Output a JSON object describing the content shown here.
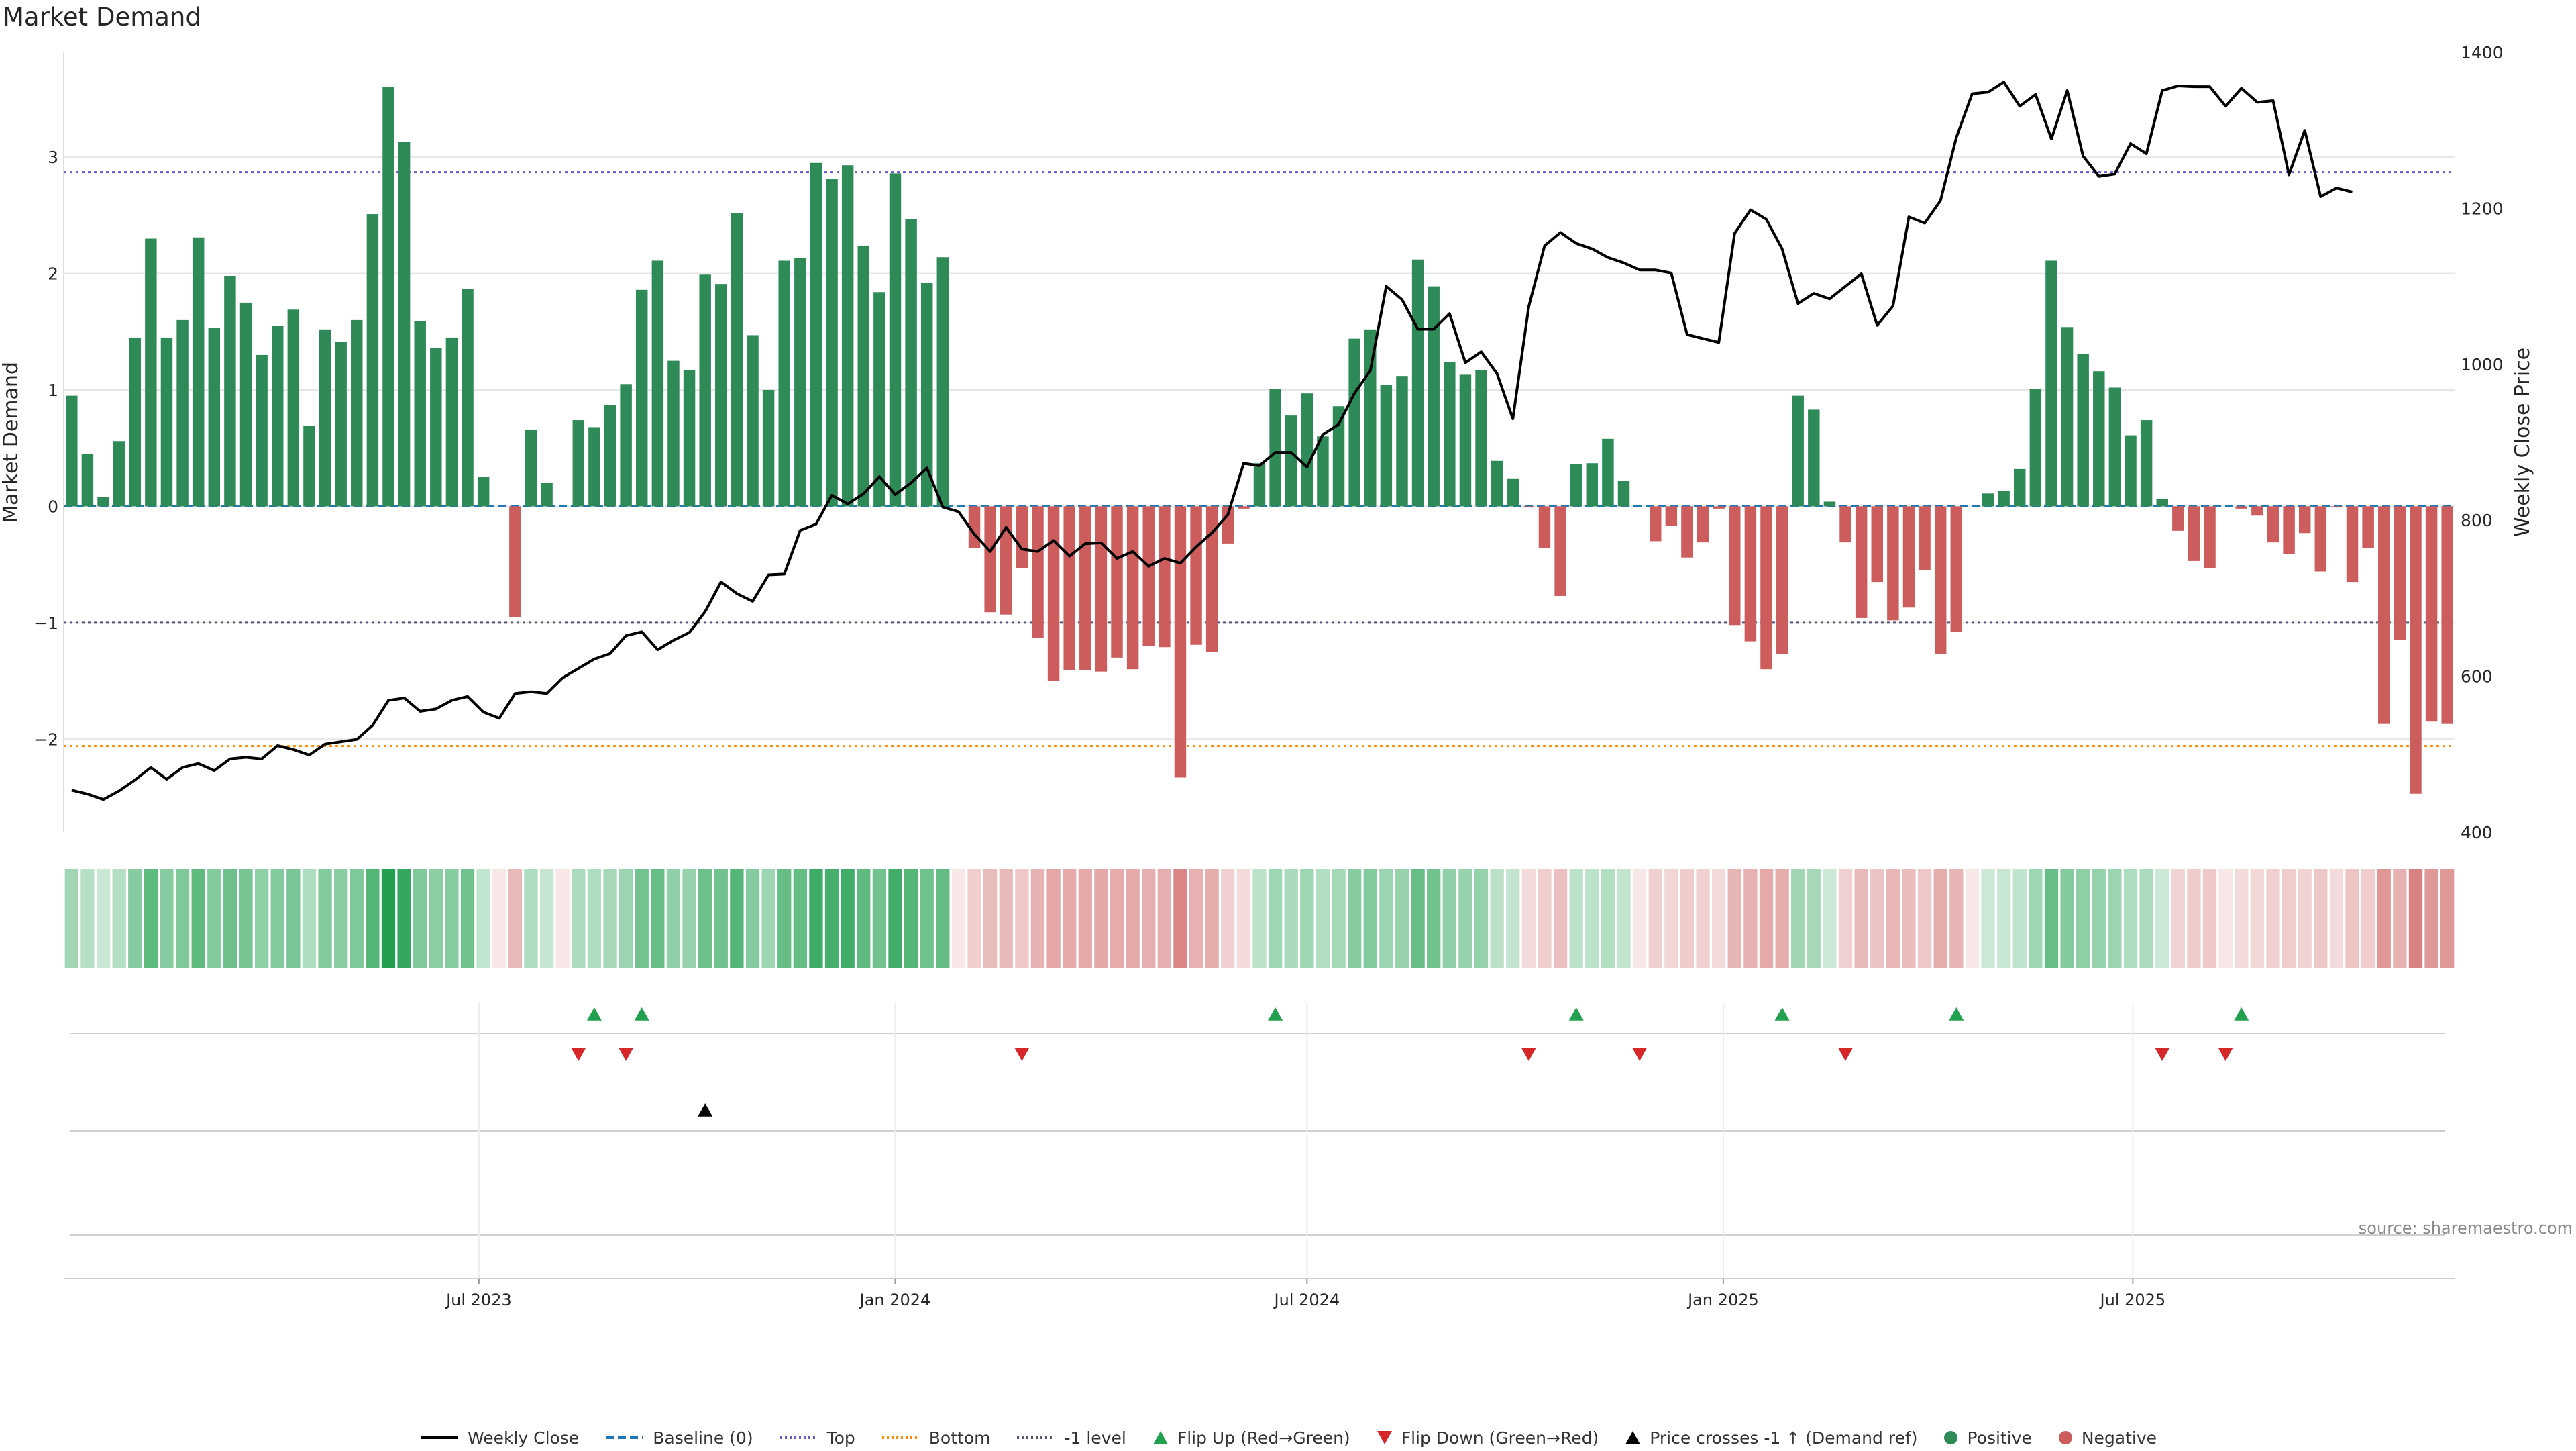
{
  "title": "Market Demand",
  "source": "source: sharemaestro.com",
  "colors": {
    "positive": "#2e8b57",
    "negative": "#cd5c5c",
    "price_line": "#000000",
    "baseline": "#1f77b4",
    "top_line": "#6a5acd",
    "bottom_line": "#ff8c00",
    "minus_one_line": "#555577",
    "flip_up": "#22a050",
    "flip_down": "#d62728",
    "cross_marker": "#000000",
    "grid": "#e6e6e6"
  },
  "chart_data": {
    "type": "bar",
    "title": "Market Demand",
    "xlabel": "",
    "ylabel_left": "Market Demand",
    "ylabel_right": "Weekly Close Price",
    "ylim_left": [
      -2.8,
      3.9
    ],
    "ylim_right": [
      400,
      1400
    ],
    "yticks_left": [
      -2,
      -1,
      0,
      1,
      2,
      3
    ],
    "yticks_right": [
      400,
      600,
      800,
      1000,
      1200,
      1400
    ],
    "x_start": "2023-01-02",
    "x_step_days": 7,
    "x_end": "2025-10-13",
    "x_tick_labels": [
      {
        "label": "Jul 2023",
        "date": "2023-07-01"
      },
      {
        "label": "Jan 2024",
        "date": "2024-01-01"
      },
      {
        "label": "Jul 2024",
        "date": "2024-07-01"
      },
      {
        "label": "Jan 2025",
        "date": "2025-01-01"
      },
      {
        "label": "Jul 2025",
        "date": "2025-07-01"
      }
    ],
    "reference_lines": {
      "baseline": 0,
      "top": 2.87,
      "bottom": -2.06,
      "minus_one": -1
    },
    "grid": true,
    "legend_position": "bottom",
    "series": [
      {
        "name": "Market Demand",
        "values": [
          0.95,
          0.45,
          0.08,
          0.56,
          1.45,
          2.3,
          1.45,
          1.6,
          2.31,
          1.53,
          1.98,
          1.75,
          1.3,
          1.55,
          1.69,
          0.69,
          1.52,
          1.41,
          1.6,
          2.51,
          3.6,
          3.13,
          1.59,
          1.36,
          1.45,
          1.87,
          0.25,
          0,
          -0.95,
          0.66,
          0.2,
          0,
          0.74,
          0.68,
          0.87,
          1.05,
          1.86,
          2.11,
          1.25,
          1.17,
          1.99,
          1.91,
          2.52,
          1.47,
          1.0,
          2.11,
          2.13,
          2.95,
          2.81,
          2.93,
          2.24,
          1.84,
          2.86,
          2.47,
          1.92,
          2.14,
          0,
          -0.36,
          -0.91,
          -0.93,
          -0.53,
          -1.13,
          -1.5,
          -1.41,
          -1.41,
          -1.42,
          -1.3,
          -1.4,
          -1.2,
          -1.21,
          -2.33,
          -1.19,
          -1.25,
          -0.32,
          -0.02,
          0.37,
          1.01,
          0.78,
          0.97,
          0.6,
          0.86,
          1.44,
          1.52,
          1.04,
          1.12,
          2.12,
          1.89,
          1.24,
          1.13,
          1.17,
          0.39,
          0.24,
          -0.01,
          -0.36,
          -0.77,
          0.36,
          0.37,
          0.58,
          0.22,
          0,
          -0.3,
          -0.17,
          -0.44,
          -0.31,
          -0.02,
          -1.02,
          -1.16,
          -1.4,
          -1.27,
          0.95,
          0.83,
          0.04,
          -0.31,
          -0.96,
          -0.65,
          -0.98,
          -0.87,
          -0.55,
          -1.27,
          -1.08,
          0,
          0.11,
          0.13,
          0.32,
          1.01,
          2.11,
          1.54,
          1.31,
          1.16,
          1.02,
          0.61,
          0.74,
          0.06,
          -0.21,
          -0.47,
          -0.53,
          0,
          -0.02,
          -0.08,
          -0.31,
          -0.41,
          -0.23,
          -0.56,
          -0.01,
          -0.65,
          -0.36,
          -1.87,
          -1.15,
          -2.47,
          -1.85,
          -1.87
        ]
      },
      {
        "name": "Weekly Close",
        "values": [
          454,
          449,
          442,
          453,
          467,
          483,
          468,
          483,
          488,
          479,
          494,
          496,
          494,
          511,
          506,
          499,
          513,
          516,
          519,
          537,
          569,
          572,
          555,
          558,
          569,
          574,
          554,
          546,
          578,
          580,
          578,
          598,
          610,
          622,
          629,
          652,
          657,
          634,
          646,
          656,
          683,
          721,
          706,
          696,
          730,
          731,
          787,
          795,
          832,
          821,
          834,
          856,
          833,
          848,
          867,
          817,
          811,
          782,
          760,
          791,
          763,
          760,
          774,
          754,
          770,
          771,
          751,
          760,
          741,
          751,
          745,
          766,
          784,
          807,
          873,
          870,
          887,
          887,
          868,
          910,
          923,
          963,
          992,
          1100,
          1083,
          1045,
          1045,
          1065,
          1002,
          1016,
          988,
          930,
          1074,
          1152,
          1169,
          1155,
          1148,
          1137,
          1130,
          1121,
          1121,
          1117,
          1038,
          1033,
          1028,
          1168,
          1198,
          1186,
          1148,
          1078,
          1091,
          1084,
          1100,
          1116,
          1050,
          1075,
          1189,
          1181,
          1210,
          1291,
          1347,
          1349,
          1362,
          1331,
          1346,
          1289,
          1351,
          1267,
          1241,
          1244,
          1283,
          1270,
          1351,
          1357,
          1356,
          1356,
          1331,
          1354,
          1336,
          1338,
          1243,
          1300,
          1215,
          1226,
          1221
        ]
      }
    ],
    "flip_up_markers": [
      "2023-08-21",
      "2023-09-11",
      "2024-06-17",
      "2024-10-28",
      "2025-01-27",
      "2025-04-14",
      "2025-08-18"
    ],
    "flip_down_markers": [
      "2023-08-14",
      "2023-09-04",
      "2024-02-26",
      "2024-10-07",
      "2024-11-25",
      "2025-02-24",
      "2025-07-14",
      "2025-08-11"
    ],
    "price_cross_markers": [
      "2023-10-09"
    ]
  },
  "legend": [
    {
      "label": "Weekly Close",
      "type": "line",
      "color": "#000000",
      "dash": ""
    },
    {
      "label": "Baseline (0)",
      "type": "line",
      "color": "#1f77b4",
      "dash": "12,6"
    },
    {
      "label": "Top",
      "type": "line",
      "color": "#6a5acd",
      "dash": "3,4"
    },
    {
      "label": "Bottom",
      "type": "line",
      "color": "#ff8c00",
      "dash": "3,4"
    },
    {
      "label": "-1 level",
      "type": "line",
      "color": "#555577",
      "dash": "3,4"
    },
    {
      "label": "Flip Up (Red→Green)",
      "type": "triangle-up",
      "color": "#22a050"
    },
    {
      "label": "Flip Down (Green→Red)",
      "type": "triangle-down",
      "color": "#d62728"
    },
    {
      "label": "Price crosses -1 ↑ (Demand ref)",
      "type": "triangle-up",
      "color": "#000000"
    },
    {
      "label": "Positive",
      "type": "circle",
      "color": "#2e8b57"
    },
    {
      "label": "Negative",
      "type": "circle",
      "color": "#cd5c5c"
    }
  ]
}
